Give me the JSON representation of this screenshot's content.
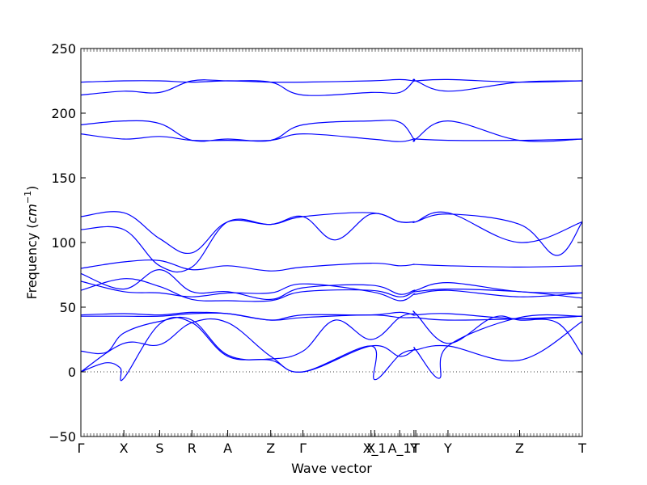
{
  "chart_data": {
    "type": "line",
    "title": "",
    "xlabel": "Wave vector",
    "ylabel": "Frequency ",
    "ylabel_unit": "cm",
    "ylabel_unit_exp": "−1",
    "ylim": [
      -50,
      250
    ],
    "yticks": [
      -50,
      0,
      50,
      100,
      150,
      200,
      250
    ],
    "xlim": [
      0,
      14
    ],
    "xticks": [
      {
        "label": "Γ",
        "x": 0
      },
      {
        "label": "X",
        "x": 1.2
      },
      {
        "label": "S",
        "x": 2.2
      },
      {
        "label": "R",
        "x": 3.1
      },
      {
        "label": "A",
        "x": 4.1
      },
      {
        "label": "Z",
        "x": 5.3
      },
      {
        "label": "Γ",
        "x": 6.2
      },
      {
        "label": "X",
        "x": 8.1
      },
      {
        "label": "X_1",
        "x": 8.2
      },
      {
        "label": "A_1",
        "x": 8.9
      },
      {
        "label": "Y",
        "x": 9.3
      },
      {
        "label": "T",
        "x": 9.35
      },
      {
        "label": "Y",
        "x": 10.25
      },
      {
        "label": "Z",
        "x": 12.25
      },
      {
        "label": "T",
        "x": 14
      }
    ],
    "zero_line": {
      "y": 0,
      "style": "dotted"
    },
    "line_color": "#0000ff",
    "series": [
      {
        "x": [
          0,
          1.2,
          2.2,
          3.1,
          4.1,
          5.3,
          6.2,
          8.1,
          8.9,
          9.3,
          9.35,
          10.25,
          12.25,
          14
        ],
        "values": [
          224,
          225,
          225,
          224,
          225,
          224,
          224,
          225,
          226,
          225,
          225,
          226,
          224,
          225
        ]
      },
      {
        "x": [
          0,
          1.2,
          2.2,
          3.1,
          4.1,
          5.3,
          6.2,
          8.1,
          8.9,
          9.3,
          9.35,
          10.25,
          12.25,
          14
        ],
        "values": [
          214,
          217,
          216,
          225,
          225,
          224,
          214,
          216,
          216,
          225,
          225,
          217,
          224,
          225
        ]
      },
      {
        "x": [
          0,
          1.2,
          2.2,
          3.1,
          4.1,
          5.3,
          6.2,
          8.1,
          8.9,
          9.3,
          9.35,
          10.25,
          12.25,
          14
        ],
        "values": [
          191,
          194,
          192,
          179,
          180,
          179,
          191,
          194,
          193,
          180,
          180,
          194,
          179,
          180
        ]
      },
      {
        "x": [
          0,
          1.2,
          2.2,
          3.1,
          4.1,
          5.3,
          6.2,
          8.1,
          8.9,
          9.3,
          9.35,
          10.25,
          12.25,
          14
        ],
        "values": [
          184,
          180,
          182,
          179,
          179,
          179,
          184,
          180,
          178,
          180,
          180,
          179,
          179,
          180
        ]
      },
      {
        "x": [
          0,
          1.2,
          2.2,
          3.1,
          4.1,
          5.3,
          6.2,
          8.1,
          8.9,
          9.3,
          9.35,
          10.25,
          12.25,
          14
        ],
        "values": [
          120,
          123,
          103,
          92,
          116,
          114,
          120,
          123,
          116,
          116,
          116,
          123,
          100,
          116
        ]
      },
      {
        "x": [
          0,
          1.2,
          2.2,
          3.1,
          4.1,
          5.3,
          6.2,
          7.1,
          8.1,
          8.9,
          9.3,
          9.35,
          10.25,
          12.25,
          13.3,
          14
        ],
        "values": [
          110,
          110,
          82,
          81,
          116,
          114,
          120,
          102,
          122,
          116,
          116,
          116,
          122,
          114,
          90,
          116
        ]
      },
      {
        "x": [
          0,
          1.2,
          2.2,
          3.1,
          4.1,
          5.3,
          6.2,
          8.1,
          8.9,
          9.3,
          9.35,
          10.25,
          12.25,
          14
        ],
        "values": [
          80,
          85,
          86,
          79,
          82,
          78,
          81,
          84,
          82,
          83,
          83,
          82,
          81,
          82
        ]
      },
      {
        "x": [
          0,
          1.2,
          2.2,
          3.1,
          4.1,
          5.3,
          6.2,
          8.1,
          8.9,
          9.3,
          9.35,
          10.25,
          12.25,
          14
        ],
        "values": [
          76,
          64,
          79,
          62,
          62,
          56,
          65,
          67,
          60,
          63,
          63,
          69,
          62,
          61
        ]
      },
      {
        "x": [
          0,
          1.2,
          2.2,
          3.1,
          4.1,
          5.3,
          6.2,
          8.1,
          8.9,
          9.3,
          9.35,
          10.25,
          12.25,
          14
        ],
        "values": [
          70,
          62,
          61,
          58,
          61,
          61,
          68,
          62,
          55,
          60,
          60,
          63,
          58,
          61
        ]
      },
      {
        "x": [
          0,
          1.2,
          2.2,
          3.1,
          4.1,
          5.3,
          6.2,
          8.1,
          8.9,
          9.3,
          9.35,
          10.25,
          12.25,
          14
        ],
        "values": [
          63,
          72,
          66,
          56,
          55,
          55,
          62,
          63,
          58,
          62,
          62,
          64,
          62,
          57
        ]
      },
      {
        "x": [
          0,
          1.2,
          2.2,
          3.1,
          4.1,
          5.3,
          6.2,
          8.1,
          8.9,
          9.3,
          9.35,
          10.25,
          12.25,
          14
        ],
        "values": [
          44,
          45,
          44,
          46,
          45,
          40,
          44,
          44,
          46,
          44,
          44,
          45,
          41,
          43
        ]
      },
      {
        "x": [
          0,
          1.2,
          2.2,
          3.1,
          4.1,
          5.3,
          6.2,
          8.1,
          8.9,
          9.3,
          9.35,
          10.25,
          12.25,
          14
        ],
        "values": [
          43,
          43,
          43,
          45,
          45,
          40,
          42,
          44,
          42,
          42,
          42,
          40,
          41,
          43
        ]
      },
      {
        "x": [
          0,
          0.7,
          1.2,
          2.2,
          3.1,
          4.1,
          5.3,
          6.2,
          7.1,
          8.1,
          8.9,
          9.3,
          9.35,
          10.25,
          11.5,
          12.25,
          13.3,
          14
        ],
        "values": [
          16,
          15,
          30,
          39,
          40,
          13,
          10,
          16,
          40,
          25,
          42,
          45,
          45,
          22,
          42,
          40,
          38,
          13
        ]
      },
      {
        "x": [
          0,
          1.2,
          2.2,
          3.1,
          4.1,
          5.3,
          6.2,
          8.1,
          8.9,
          9.3,
          9.35,
          10.25,
          12.25,
          14
        ],
        "values": [
          0,
          22,
          21,
          38,
          38,
          12,
          0,
          20,
          12,
          17,
          17,
          20,
          9,
          39
        ]
      },
      {
        "x": [
          0,
          0.7,
          1.1,
          1.2,
          2.2,
          3.1,
          4.1,
          5.3,
          6.2,
          8.1,
          8.2,
          8.9,
          9.3,
          9.35,
          10.0,
          10.25,
          12.25,
          14
        ],
        "values": [
          0,
          7,
          3,
          -5,
          37,
          38,
          12,
          9,
          0,
          20,
          -6,
          13,
          17,
          17,
          -5,
          20,
          42,
          43
        ]
      }
    ]
  }
}
